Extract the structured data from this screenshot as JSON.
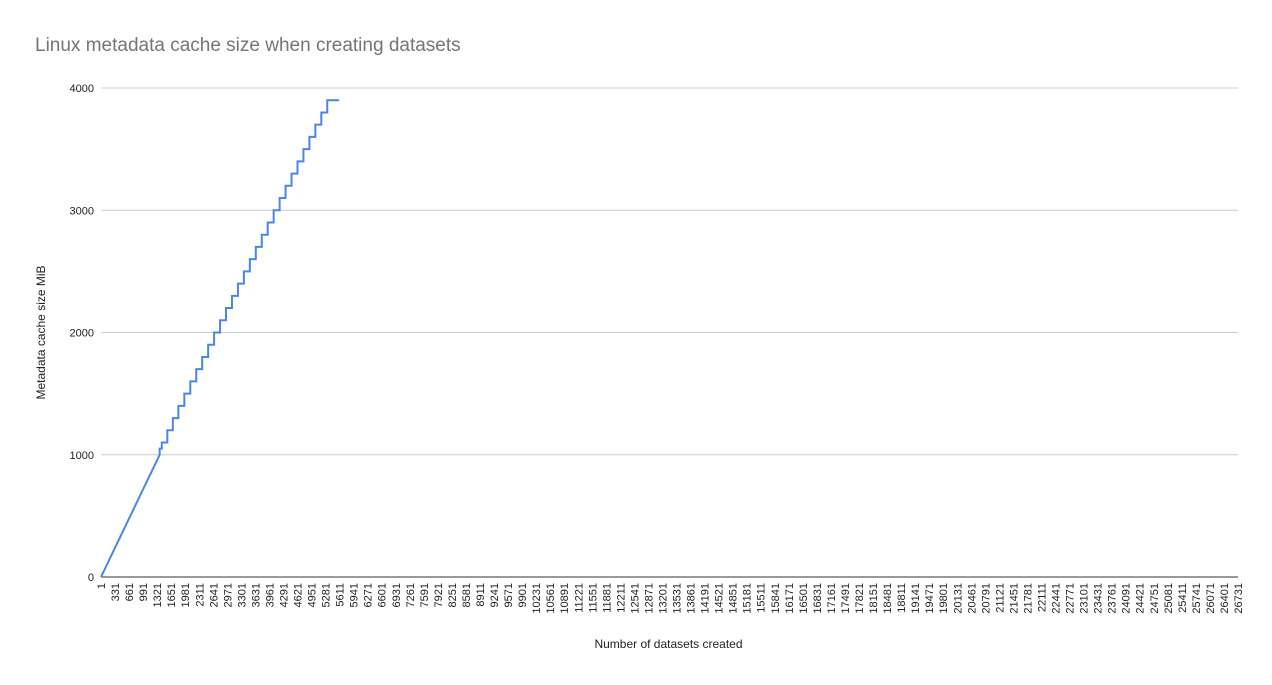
{
  "chart_data": {
    "type": "line",
    "title": "Linux metadata cache size when creating datasets",
    "xlabel": "Number of datasets created",
    "ylabel": "Metadata cache size MiB",
    "ylim": [
      0,
      4000
    ],
    "yticks": [
      "0",
      "1000",
      "2000",
      "3000",
      "4000"
    ],
    "grid": true,
    "legend": "none",
    "colors": {
      "line": "#4a86e8",
      "grid": "#cccccc",
      "axis": "#333333"
    },
    "xlim": [
      1,
      26731
    ],
    "xticks": [
      "1",
      "331",
      "661",
      "991",
      "1321",
      "1651",
      "1981",
      "2311",
      "2641",
      "2971",
      "3301",
      "3631",
      "3961",
      "4291",
      "4621",
      "4951",
      "5281",
      "5611",
      "5941",
      "6271",
      "6601",
      "6931",
      "7261",
      "7591",
      "7921",
      "8251",
      "8581",
      "8911",
      "9241",
      "9571",
      "9901",
      "10231",
      "10561",
      "10891",
      "11221",
      "11551",
      "11881",
      "12211",
      "12541",
      "12871",
      "13201",
      "13531",
      "13861",
      "14191",
      "14521",
      "14851",
      "15181",
      "15511",
      "15841",
      "16171",
      "16501",
      "16831",
      "17161",
      "17491",
      "17821",
      "18151",
      "18481",
      "18811",
      "19141",
      "19471",
      "19801",
      "20131",
      "20461",
      "20791",
      "21121",
      "21451",
      "21781",
      "22111",
      "22441",
      "22771",
      "23101",
      "23431",
      "23761",
      "24091",
      "24421",
      "24751",
      "25081",
      "25411",
      "25741",
      "26071",
      "26401",
      "26731"
    ],
    "series": [
      {
        "x": [
          1,
          1380,
          1380,
          1430,
          1430,
          1560,
          1560,
          1690,
          1690,
          1820,
          1820,
          1960,
          1960,
          2100,
          2100,
          2240,
          2240,
          2380,
          2380,
          2520,
          2520,
          2660,
          2660,
          2800,
          2800,
          2940,
          2940,
          3080,
          3080,
          3220,
          3220,
          3360,
          3360,
          3500,
          3500,
          3640,
          3640,
          3780,
          3780,
          3920,
          3920,
          4060,
          4060,
          4200,
          4200,
          4340,
          4340,
          4480,
          4480,
          4620,
          4620,
          4760,
          4760,
          4900,
          4900,
          5040,
          5040,
          5180,
          5180,
          5320,
          5320,
          5460,
          5460,
          5600
        ],
        "y": [
          0,
          1000,
          1050,
          1050,
          1100,
          1100,
          1200,
          1200,
          1300,
          1300,
          1400,
          1400,
          1500,
          1500,
          1600,
          1600,
          1700,
          1700,
          1800,
          1800,
          1900,
          1900,
          2000,
          2000,
          2100,
          2100,
          2200,
          2200,
          2300,
          2300,
          2400,
          2400,
          2500,
          2500,
          2600,
          2600,
          2700,
          2700,
          2800,
          2800,
          2900,
          2900,
          3000,
          3000,
          3100,
          3100,
          3200,
          3200,
          3300,
          3300,
          3400,
          3400,
          3500,
          3500,
          3600,
          3600,
          3700,
          3700,
          3800,
          3800,
          3900,
          3900,
          3900,
          3900
        ]
      }
    ]
  }
}
